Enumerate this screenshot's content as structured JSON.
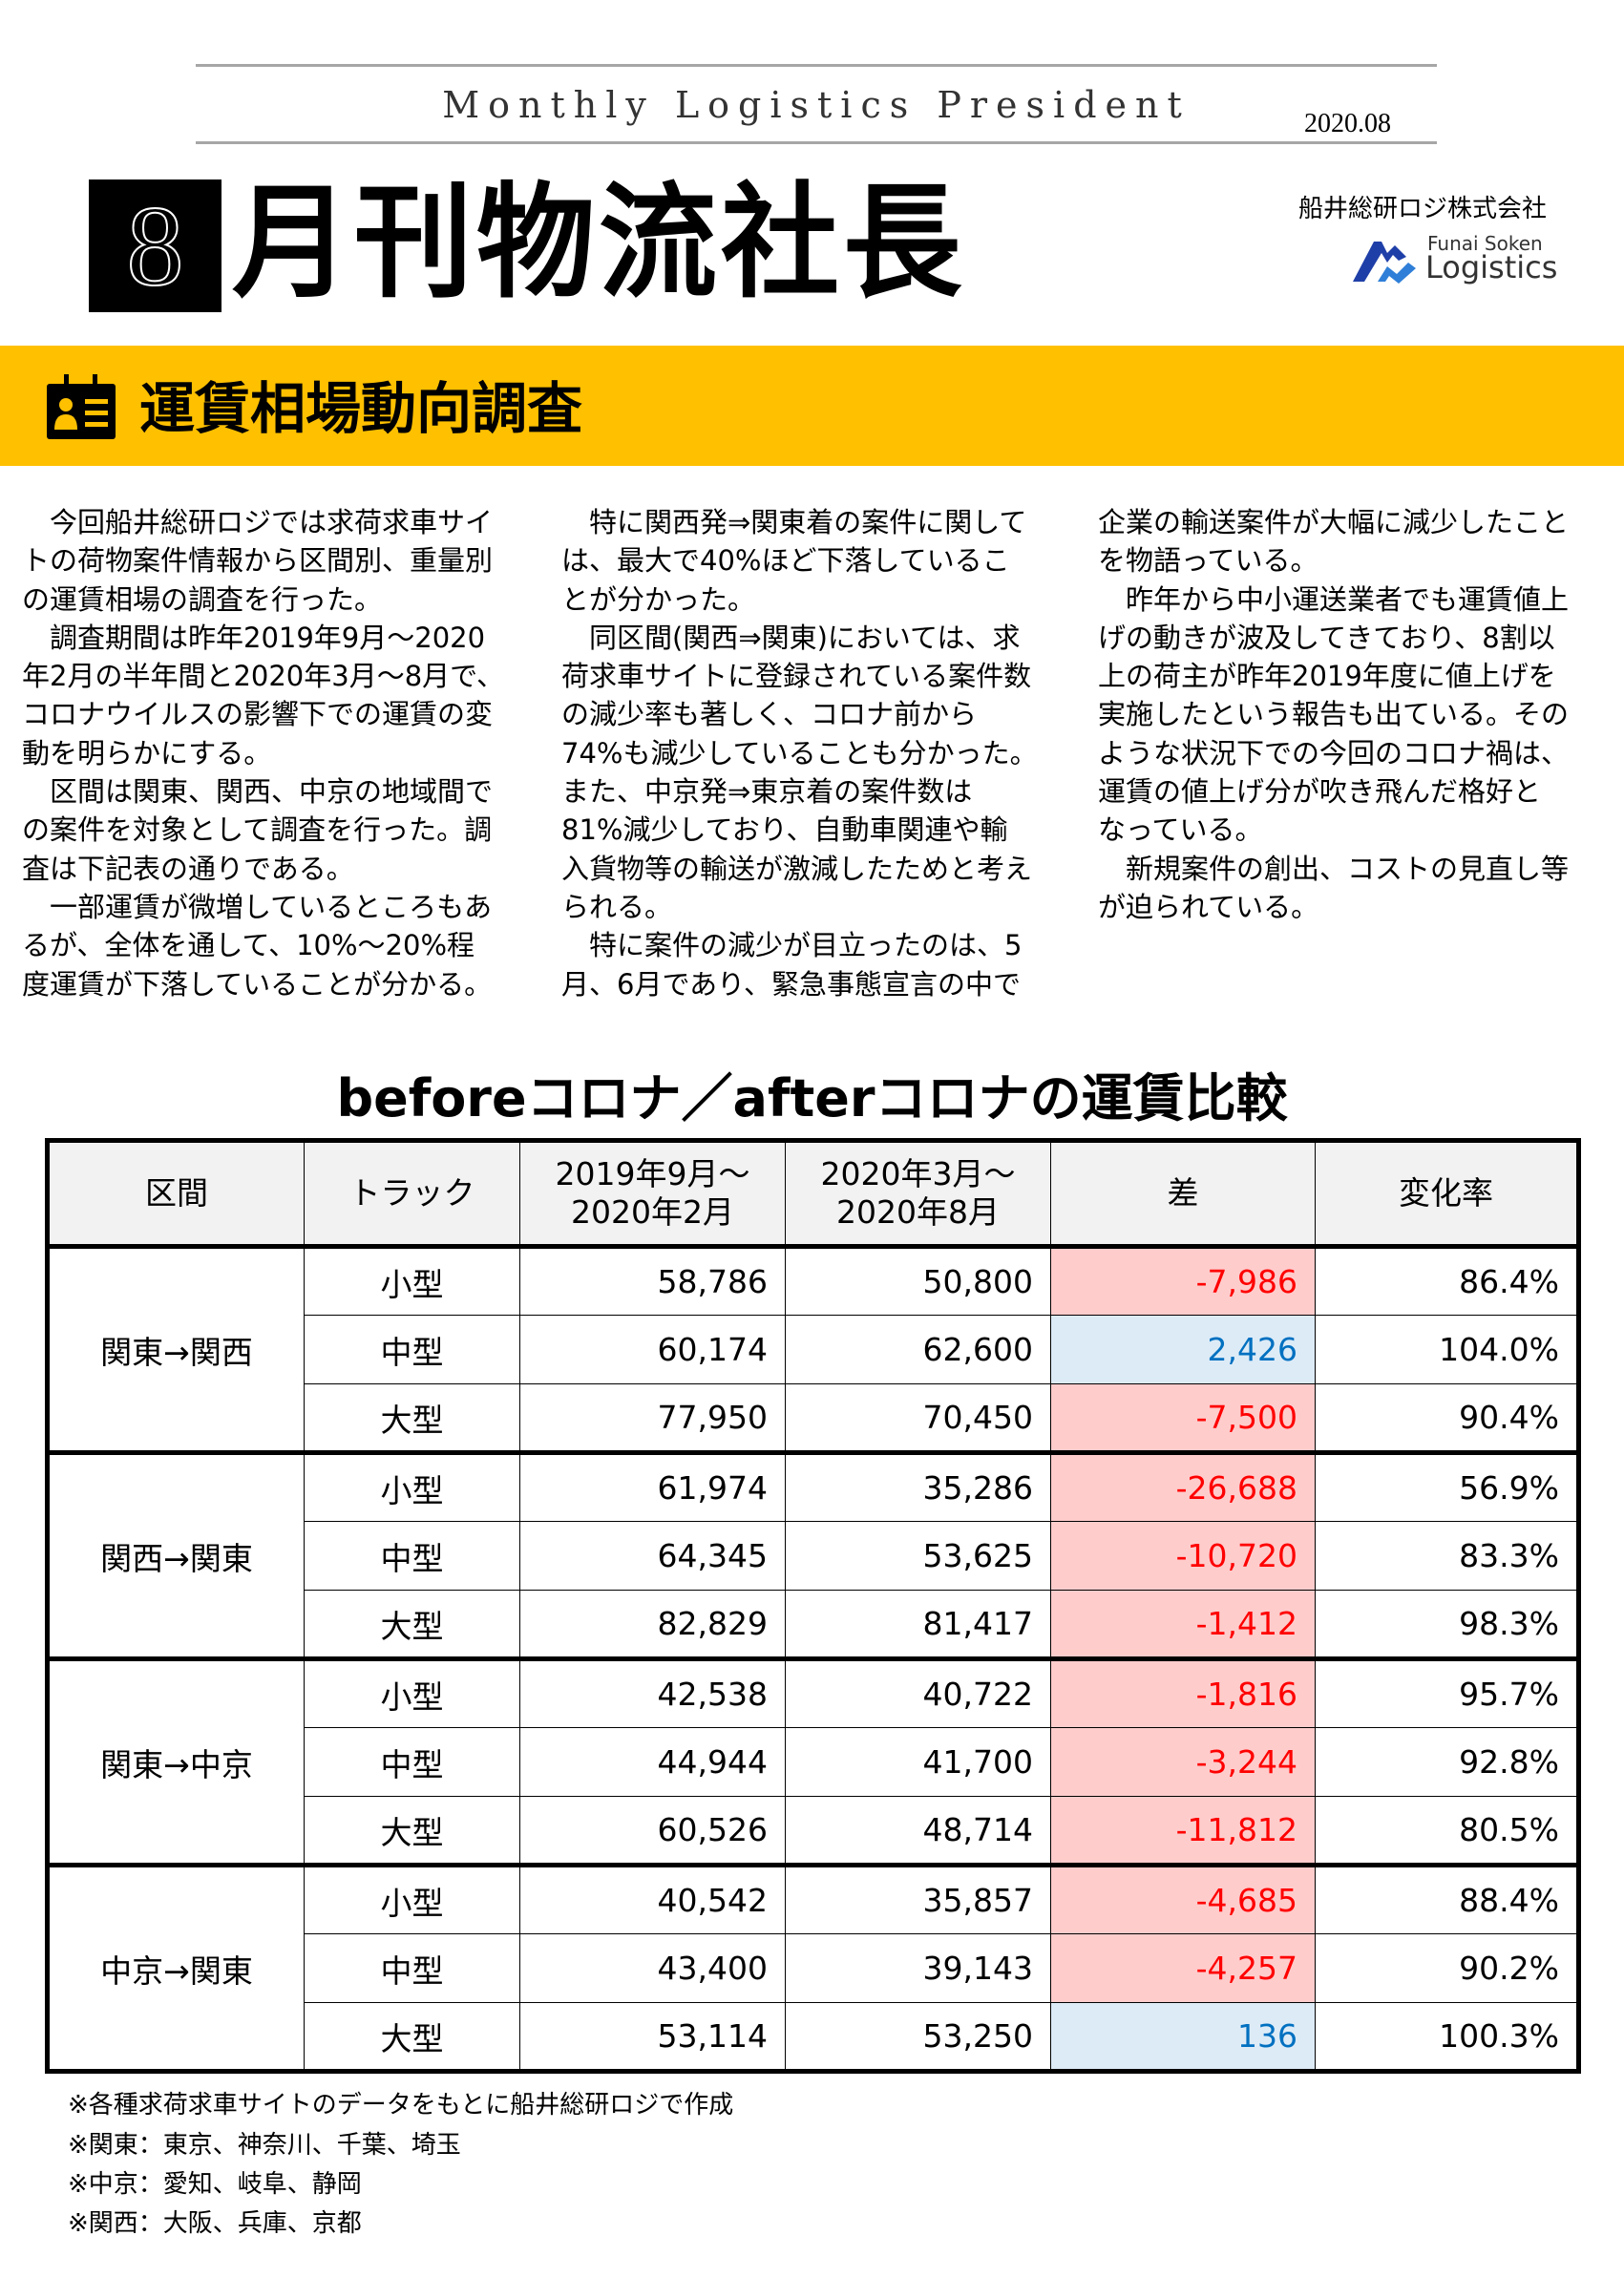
{
  "masthead": {
    "english_title": "Monthly Logistics President",
    "issue": "2020.08",
    "issue_number": "8",
    "title": "月刊物流社長",
    "company": "船井総研ロジ株式会社",
    "logo_text": [
      "Funai Soken",
      "Logistics"
    ]
  },
  "section": {
    "icon": "id-badge-icon",
    "title": "運賃相場動向調査",
    "band_color": "#FFC000"
  },
  "article": {
    "columns": [
      [
        "　今回船井総研ロジでは求荷求車サイ",
        "トの荷物案件情報から区間別、重量別",
        "の運賃相場の調査を行った。",
        "　調査期間は昨年2019年9月～2020",
        "年2月の半年間と2020年3月～8月で、",
        "コロナウイルスの影響下での運賃の変",
        "動を明らかにする。",
        "　区間は関東、関西、中京の地域間で",
        "の案件を対象として調査を行った。調",
        "査は下記表の通りである。",
        "　一部運賃が微増しているところもあ",
        "るが、全体を通して、10%～20%程",
        "度運賃が下落していることが分かる。"
      ],
      [
        "　特に関西発⇒関東着の案件に関して",
        "は、最大で40%ほど下落しているこ",
        "とが分かった。",
        "　同区間(関西⇒関東)においては、求",
        "荷求車サイトに登録されている案件数",
        "の減少率も著しく、コロナ前から",
        "74%も減少していることも分かった。",
        "また、中京発⇒東京着の案件数は",
        "81%減少しており、自動車関連や輸",
        "入貨物等の輸送が激減したためと考え",
        "られる。",
        "　特に案件の減少が目立ったのは、5",
        "月、6月であり、緊急事態宣言の中で"
      ],
      [
        "企業の輸送案件が大幅に減少したこと",
        "を物語っている。",
        "　昨年から中小運送業者でも運賃値上",
        "げの動きが波及してきており、8割以",
        "上の荷主が昨年2019年度に値上げを",
        "実施したという報告も出ている。その",
        "ような状況下での今回のコロナ禍は、",
        "運賃の値上げ分が吹き飛んだ格好と",
        "なっている。",
        "　新規案件の創出、コストの見直し等",
        "が迫られている。"
      ]
    ]
  },
  "table": {
    "title": "beforeコロナ／afterコロナの運賃比較",
    "headers": [
      "区間",
      "トラック",
      "2019年9月～\n2020年2月",
      "2020年3月～\n2020年8月",
      "差",
      "変化率"
    ],
    "groups": [
      {
        "region": "関東→関西",
        "rows": [
          {
            "truck": "小型",
            "before": "58,786",
            "after": "50,800",
            "diff": "-7,986",
            "rate": "86.4%"
          },
          {
            "truck": "中型",
            "before": "60,174",
            "after": "62,600",
            "diff": "2,426",
            "rate": "104.0%"
          },
          {
            "truck": "大型",
            "before": "77,950",
            "after": "70,450",
            "diff": "-7,500",
            "rate": "90.4%"
          }
        ]
      },
      {
        "region": "関西→関東",
        "rows": [
          {
            "truck": "小型",
            "before": "61,974",
            "after": "35,286",
            "diff": "-26,688",
            "rate": "56.9%"
          },
          {
            "truck": "中型",
            "before": "64,345",
            "after": "53,625",
            "diff": "-10,720",
            "rate": "83.3%"
          },
          {
            "truck": "大型",
            "before": "82,829",
            "after": "81,417",
            "diff": "-1,412",
            "rate": "98.3%"
          }
        ]
      },
      {
        "region": "関東→中京",
        "rows": [
          {
            "truck": "小型",
            "before": "42,538",
            "after": "40,722",
            "diff": "-1,816",
            "rate": "95.7%"
          },
          {
            "truck": "中型",
            "before": "44,944",
            "after": "41,700",
            "diff": "-3,244",
            "rate": "92.8%"
          },
          {
            "truck": "大型",
            "before": "60,526",
            "after": "48,714",
            "diff": "-11,812",
            "rate": "80.5%"
          }
        ]
      },
      {
        "region": "中京→関東",
        "rows": [
          {
            "truck": "小型",
            "before": "40,542",
            "after": "35,857",
            "diff": "-4,685",
            "rate": "88.4%"
          },
          {
            "truck": "中型",
            "before": "43,400",
            "after": "39,143",
            "diff": "-4,257",
            "rate": "90.2%"
          },
          {
            "truck": "大型",
            "before": "53,114",
            "after": "53,250",
            "diff": "136",
            "rate": "100.3%"
          }
        ]
      }
    ],
    "colors": {
      "negative_bg": "#FFCCCC",
      "negative_text": "#FF0000",
      "positive_bg": "#DDEBF7",
      "positive_text": "#0070C0"
    }
  },
  "footnotes": [
    "※各種求荷求車サイトのデータをもとに船井総研ロジで作成",
    "※関東：東京、神奈川、千葉、埼玉",
    "※中京：愛知、岐阜、静岡",
    "※関西：大阪、兵庫、京都"
  ]
}
